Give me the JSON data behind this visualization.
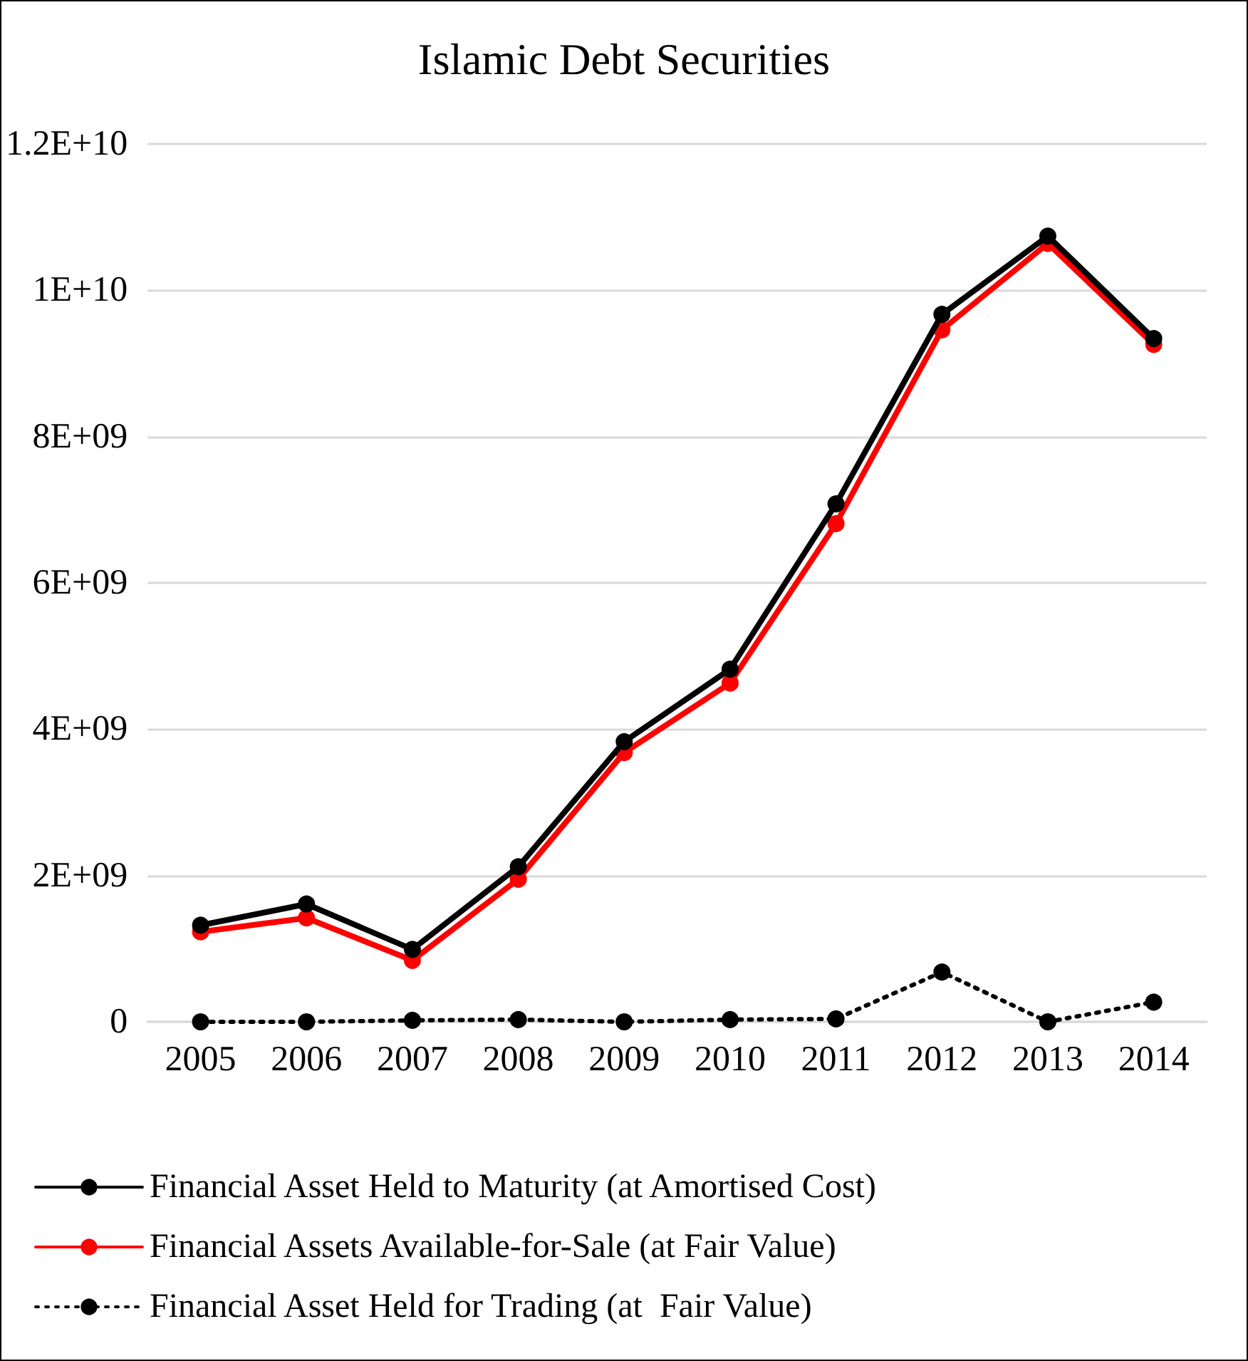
{
  "chart_data": {
    "type": "line",
    "title": "Islamic Debt Securities",
    "categories": [
      "2005",
      "2006",
      "2007",
      "2008",
      "2009",
      "2010",
      "2011",
      "2012",
      "2013",
      "2014"
    ],
    "series": [
      {
        "name": "Financial Asset Held to Maturity (at Amortised Cost)",
        "color": "#000000",
        "line_style": "solid",
        "values": [
          1320000000,
          1610000000,
          990000000,
          2120000000,
          3830000000,
          4820000000,
          7080000000,
          9670000000,
          10740000000,
          9340000000
        ]
      },
      {
        "name": "Financial Assets Available-for-Sale (at Fair Value)",
        "color": "#ff0000",
        "line_style": "solid",
        "values": [
          1230000000,
          1420000000,
          840000000,
          1950000000,
          3680000000,
          4630000000,
          6810000000,
          9460000000,
          10640000000,
          9260000000
        ]
      },
      {
        "name": "Financial Asset Held for Trading (at  Fair Value)",
        "color": "#000000",
        "line_style": "dotted",
        "values": [
          0,
          0,
          20000000,
          30000000,
          0,
          30000000,
          40000000,
          680000000,
          0,
          270000000
        ]
      }
    ],
    "ylim": [
      0,
      12000000000
    ],
    "yticks": [
      0,
      {
        "value": 2000000000,
        "label": "2E+09"
      },
      {
        "value": 4000000000,
        "label": "4E+09"
      },
      {
        "value": 6000000000,
        "label": "6E+09"
      },
      {
        "value": 8000000000,
        "label": "8E+09"
      },
      {
        "value": 10000000000,
        "label": "1E+10"
      },
      {
        "value": 12000000000,
        "label": "1.2E+10"
      }
    ],
    "grid": "y",
    "legend": "bottom",
    "marker": "circle"
  }
}
